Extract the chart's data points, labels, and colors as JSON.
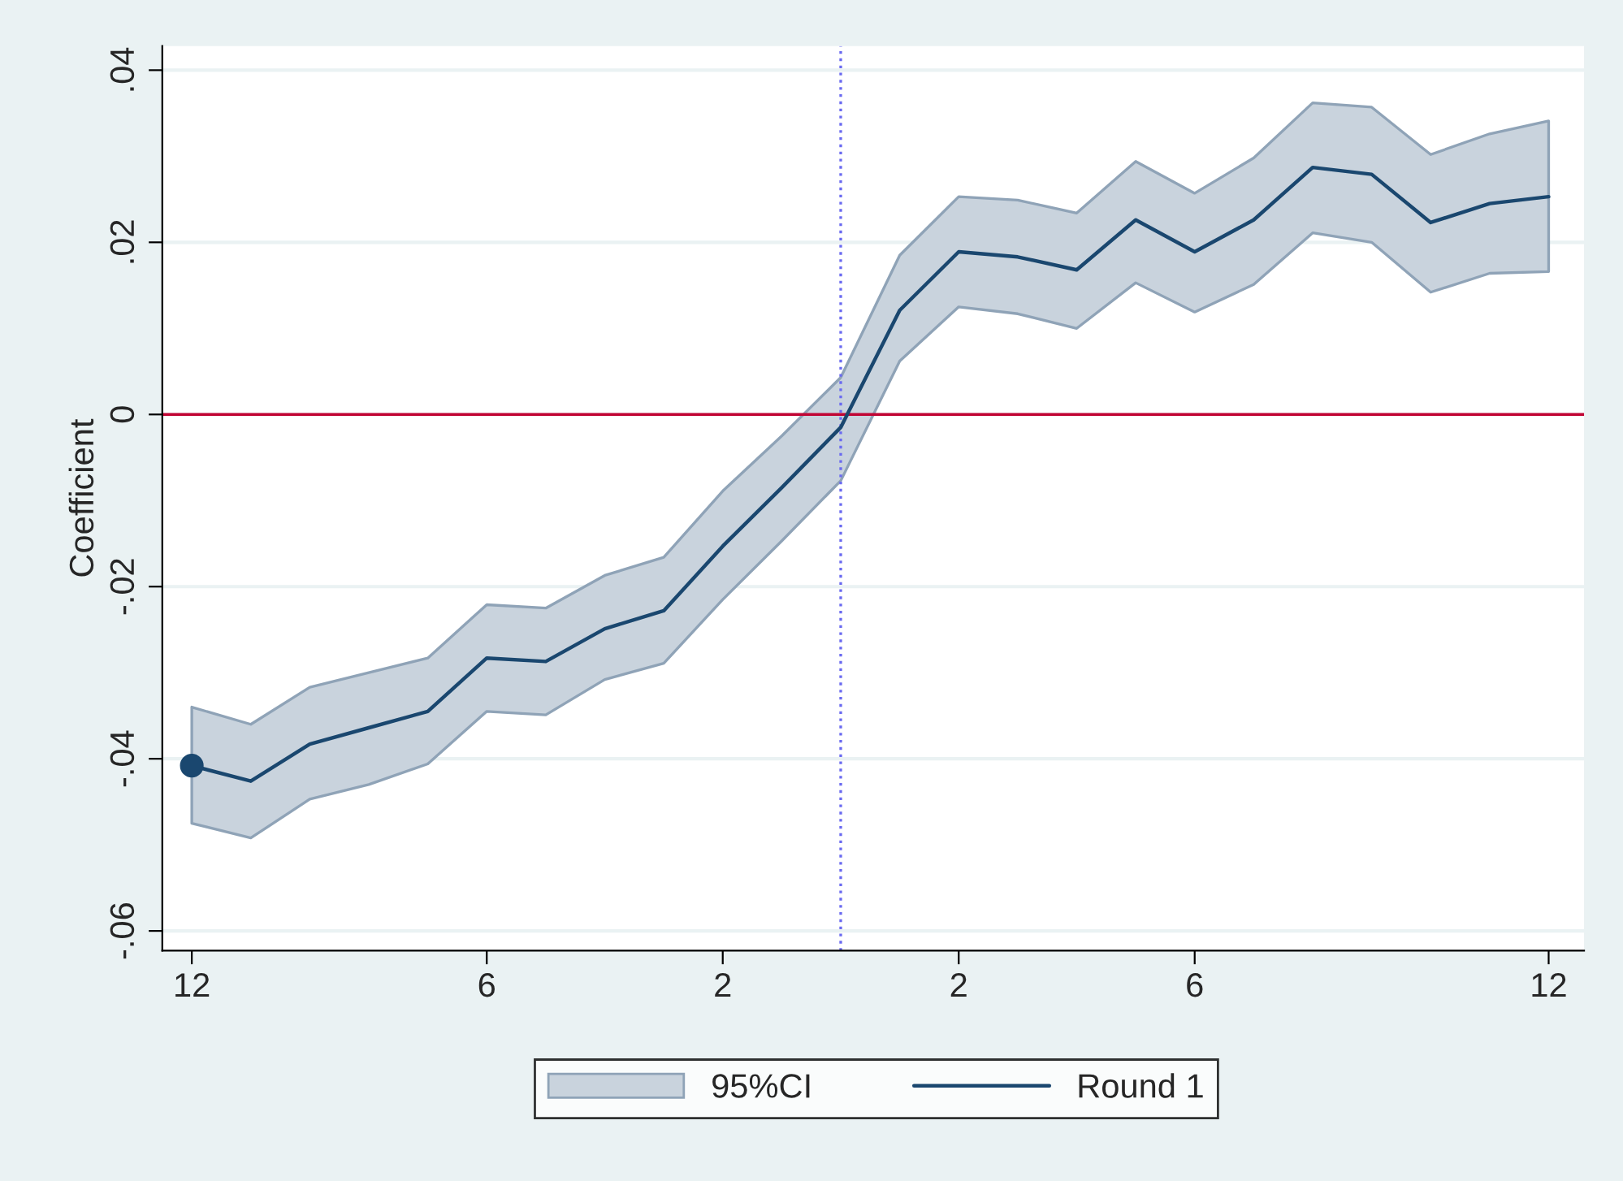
{
  "chart_data": {
    "type": "line",
    "ylabel": "Coefficient",
    "categories": [
      "12",
      null,
      null,
      null,
      null,
      "6",
      null,
      null,
      null,
      "2",
      null,
      null,
      null,
      "2",
      null,
      null,
      null,
      "6",
      null,
      null,
      null,
      null,
      null,
      "12"
    ],
    "ylim": [
      -0.0623,
      0.0428
    ],
    "yticks": [
      {
        "value": -0.06,
        "label": "-.06"
      },
      {
        "value": -0.04,
        "label": "-.04"
      },
      {
        "value": -0.02,
        "label": "-.02"
      },
      0,
      {
        "value": 0.02,
        "label": ".02"
      },
      {
        "value": 0.04,
        "label": ".04"
      }
    ],
    "series": [
      {
        "name": "Round 1",
        "color": "#1a476f",
        "values": [
          -0.0408,
          -0.0426,
          -0.0383,
          -0.0364,
          -0.0345,
          -0.0283,
          -0.0287,
          -0.0249,
          -0.0228,
          -0.0153,
          -0.0085,
          -0.0015,
          0.0121,
          0.0189,
          0.0183,
          0.0168,
          0.0226,
          0.0189,
          0.0226,
          0.0287,
          0.0279,
          0.0223,
          0.0245,
          0.0253
        ],
        "lower": [
          -0.0475,
          -0.0492,
          -0.0447,
          -0.043,
          -0.0406,
          -0.0345,
          -0.0349,
          -0.0308,
          -0.0289,
          -0.0215,
          -0.0147,
          -0.0077,
          0.0062,
          0.0125,
          0.0117,
          0.01,
          0.0153,
          0.0119,
          0.0151,
          0.0211,
          0.02,
          0.0142,
          0.0164,
          0.0166
        ],
        "upper": [
          -0.034,
          -0.036,
          -0.0317,
          -0.03,
          -0.0283,
          -0.0221,
          -0.0225,
          -0.0187,
          -0.0166,
          -0.0089,
          -0.0025,
          0.0043,
          0.0185,
          0.0253,
          0.0249,
          0.0234,
          0.0294,
          0.0257,
          0.0298,
          0.0362,
          0.0357,
          0.0302,
          0.0326,
          0.0341
        ]
      },
      {
        "type": "scatter",
        "color": "#1a476f",
        "marker": "circle",
        "values": [
          -0.0408,
          null,
          null,
          null,
          null,
          null,
          null,
          null,
          null,
          null,
          null,
          null,
          null,
          null,
          null,
          null,
          null,
          null,
          null,
          null,
          null,
          null,
          null,
          null
        ]
      }
    ],
    "annotations": [
      "95%CI"
    ],
    "ref_lines": [
      {
        "axis": "y",
        "value": 0,
        "color": "#c10534",
        "line_style": "solid"
      }
    ],
    "grid": "y",
    "legend": "bottom"
  }
}
